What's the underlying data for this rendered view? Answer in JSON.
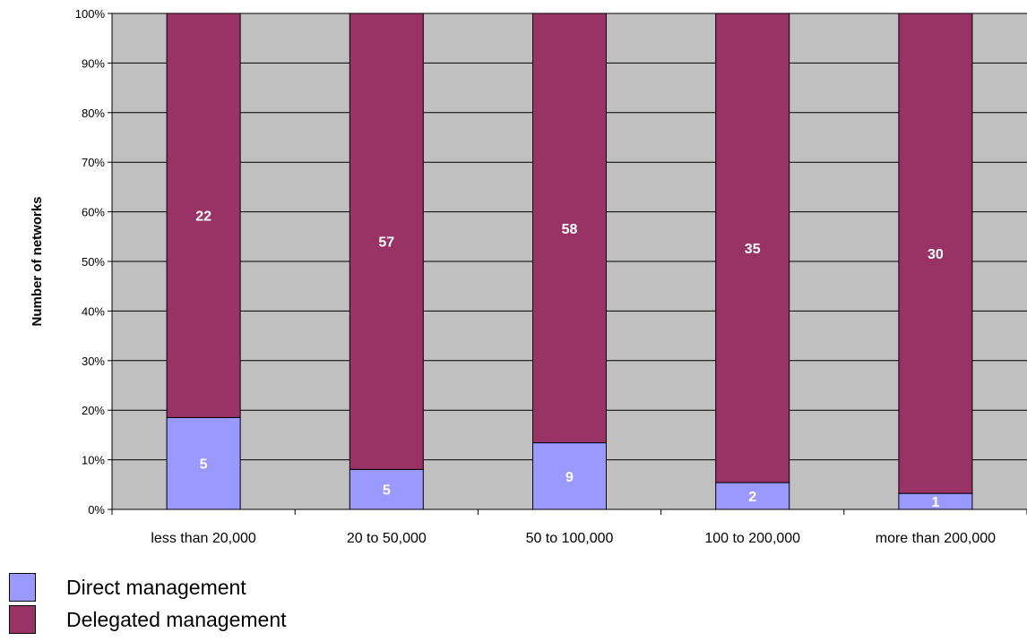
{
  "chart_data": {
    "type": "bar",
    "stacked": "percent",
    "categories": [
      "less than 20,000",
      "20 to 50,000",
      "50 to 100,000",
      "100 to 200,000",
      "more than 200,000"
    ],
    "series": [
      {
        "name": "Direct management",
        "values": [
          5,
          5,
          9,
          2,
          1
        ],
        "color": "#9999ff"
      },
      {
        "name": "Delegated management",
        "values": [
          22,
          57,
          58,
          35,
          30
        ],
        "color": "#993366"
      }
    ],
    "ylabel": "Number of networks",
    "yticks": [
      "0%",
      "10%",
      "20%",
      "30%",
      "40%",
      "50%",
      "60%",
      "70%",
      "80%",
      "90%",
      "100%"
    ],
    "ylim": [
      0,
      100
    ],
    "grid": true,
    "plot_background": "#c0c0c0",
    "legend_position": "bottom-left"
  }
}
